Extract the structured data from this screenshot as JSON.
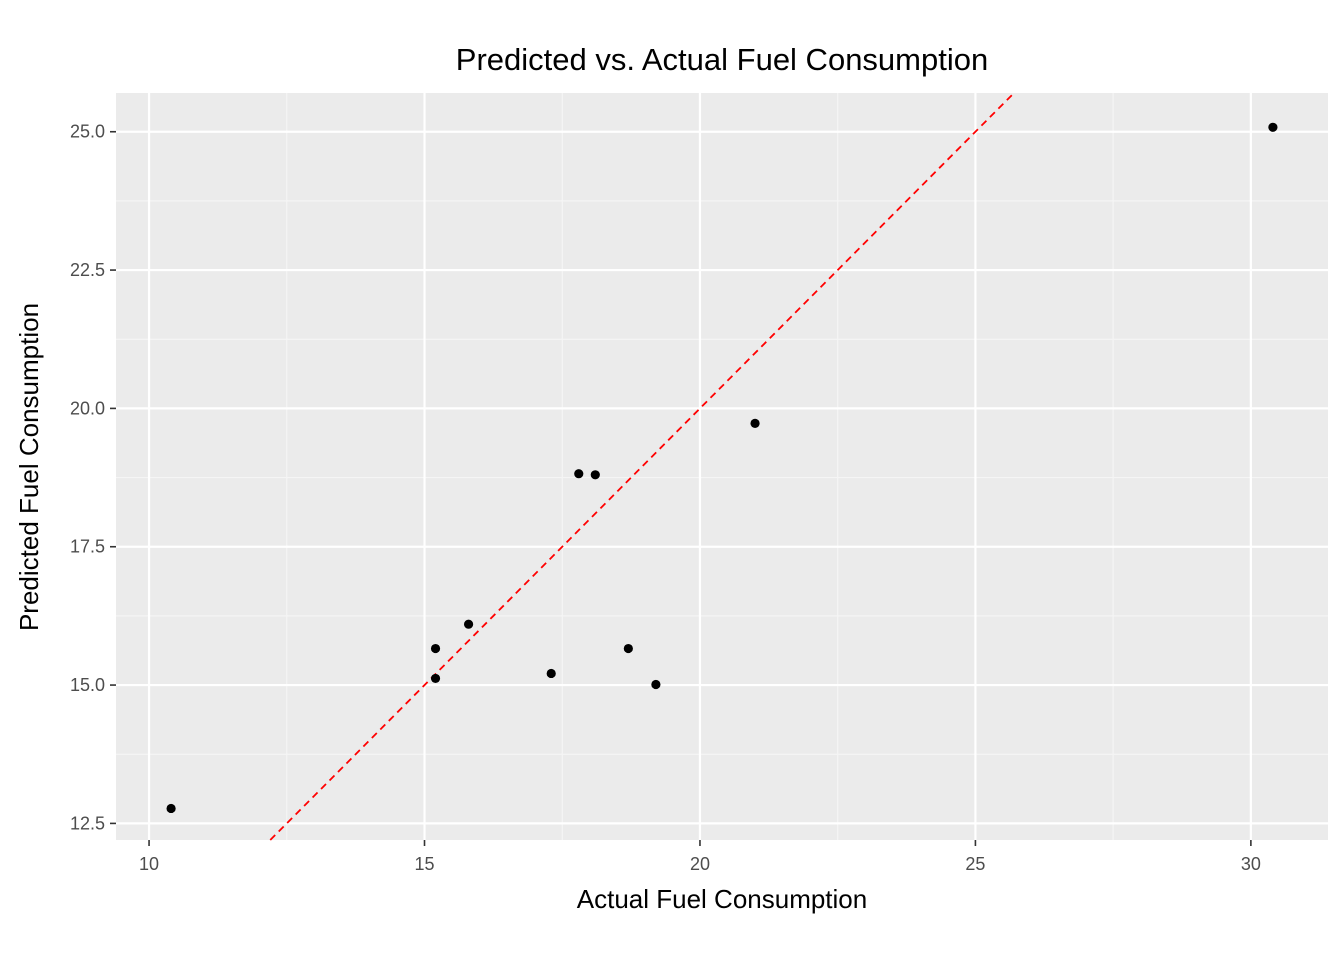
{
  "chart_data": {
    "type": "scatter",
    "title": "Predicted vs. Actual Fuel Consumption",
    "xlabel": "Actual Fuel Consumption",
    "ylabel": "Predicted Fuel Consumption",
    "xlim": [
      9.4,
      31.4
    ],
    "ylim": [
      12.2,
      25.7
    ],
    "x_ticks": [
      10,
      15,
      20,
      25,
      30
    ],
    "x_tick_labels": [
      "10",
      "15",
      "20",
      "25",
      "30"
    ],
    "y_ticks": [
      12.5,
      15.0,
      17.5,
      20.0,
      22.5,
      25.0
    ],
    "y_tick_labels": [
      "12.5",
      "15.0",
      "17.5",
      "20.0",
      "22.5",
      "25.0"
    ],
    "grid": true,
    "legend": "none",
    "points": [
      {
        "x": 10.4,
        "y": 12.77
      },
      {
        "x": 15.2,
        "y": 15.12
      },
      {
        "x": 15.2,
        "y": 15.66
      },
      {
        "x": 15.8,
        "y": 16.1
      },
      {
        "x": 17.3,
        "y": 15.21
      },
      {
        "x": 17.8,
        "y": 18.82
      },
      {
        "x": 18.1,
        "y": 18.8
      },
      {
        "x": 18.7,
        "y": 15.66
      },
      {
        "x": 19.2,
        "y": 15.01
      },
      {
        "x": 21.0,
        "y": 19.73
      },
      {
        "x": 30.4,
        "y": 25.08
      }
    ],
    "reference_line": {
      "slope": 1,
      "intercept": 0,
      "style": "dashed",
      "color": "#ff0000"
    },
    "colors": {
      "panel_background": "#ebebeb",
      "grid_major": "#ffffff",
      "grid_minor": "#f5f5f5",
      "point": "#000000"
    }
  }
}
